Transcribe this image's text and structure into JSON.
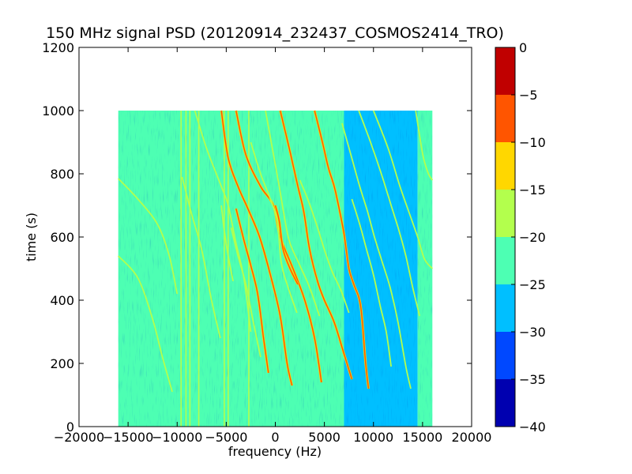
{
  "chart_data": {
    "type": "heatmap",
    "title": "150 MHz signal PSD (20120914_232437_COSMOS2414_TRO)",
    "xlabel": "frequency (Hz)",
    "ylabel": "time (s)",
    "xlim": [
      -20000,
      20000
    ],
    "ylim": [
      0,
      1200
    ],
    "x_ticks": [
      -20000,
      -15000,
      -10000,
      -5000,
      0,
      5000,
      10000,
      15000,
      20000
    ],
    "x_tick_labels": [
      "−20000",
      "−15000",
      "−10000",
      "−5000",
      "0",
      "5000",
      "10000",
      "15000",
      "20000"
    ],
    "y_ticks": [
      0,
      200,
      400,
      600,
      800,
      1000,
      1200
    ],
    "y_tick_labels": [
      "0",
      "200",
      "400",
      "600",
      "800",
      "1000",
      "1200"
    ],
    "data_extent": {
      "x": [
        -16000,
        16000
      ],
      "y": [
        0,
        1000
      ]
    },
    "colorbar": {
      "range": [
        -40,
        0
      ],
      "levels": [
        {
          "from": -40,
          "to": -35,
          "color": "#0000b0"
        },
        {
          "from": -35,
          "to": -30,
          "color": "#0048ff"
        },
        {
          "from": -30,
          "to": -25,
          "color": "#00bfff"
        },
        {
          "from": -25,
          "to": -20,
          "color": "#4dffb3"
        },
        {
          "from": -20,
          "to": -15,
          "color": "#b3ff4d"
        },
        {
          "from": -15,
          "to": -10,
          "color": "#ffd700"
        },
        {
          "from": -10,
          "to": -5,
          "color": "#ff5500"
        },
        {
          "from": -5,
          "to": 0,
          "color": "#c00000"
        }
      ],
      "ticks": [
        0,
        -5,
        -10,
        -15,
        -20,
        -25,
        -30,
        -35,
        -40
      ],
      "tick_labels": [
        "0",
        "−5",
        "−10",
        "−15",
        "−20",
        "−25",
        "−30",
        "−35",
        "−40"
      ]
    },
    "background_regions": [
      {
        "x_from": -16000,
        "x_to": 7000,
        "level": -22.5
      },
      {
        "x_from": 7000,
        "x_to": 14500,
        "level": -27.5
      },
      {
        "x_from": 14500,
        "x_to": 16000,
        "level": -22.5
      }
    ],
    "vertical_lines": [
      {
        "x": -9600,
        "y_from": 0,
        "y_to": 1000,
        "level": -17.5
      },
      {
        "x": -9100,
        "y_from": 0,
        "y_to": 1000,
        "level": -17.5
      },
      {
        "x": -8700,
        "y_from": 0,
        "y_to": 1000,
        "level": -17.5
      },
      {
        "x": -7800,
        "y_from": 0,
        "y_to": 1000,
        "level": -17.5
      },
      {
        "x": -5200,
        "y_from": 0,
        "y_to": 1000,
        "level": -17.5
      },
      {
        "x": -4800,
        "y_from": 0,
        "y_to": 1000,
        "level": -17.5
      },
      {
        "x": -2700,
        "y_from": 0,
        "y_to": 1000,
        "level": -17.5
      },
      {
        "x": -1200,
        "y_from": 0,
        "y_to": 1000,
        "level": -20
      }
    ],
    "tracks": [
      {
        "points": [
          [
            -16000,
            540
          ],
          [
            -14000,
            470
          ],
          [
            -12500,
            340
          ],
          [
            -11500,
            220
          ],
          [
            -10500,
            110
          ]
        ],
        "level": -17.5
      },
      {
        "points": [
          [
            -16000,
            785
          ],
          [
            -14000,
            720
          ],
          [
            -12000,
            640
          ],
          [
            -10800,
            540
          ],
          [
            -10000,
            420
          ]
        ],
        "level": -17.5
      },
      {
        "points": [
          [
            -9500,
            790
          ],
          [
            -8500,
            670
          ],
          [
            -7500,
            560
          ],
          [
            -6500,
            400
          ],
          [
            -5600,
            280
          ]
        ],
        "level": -17.5
      },
      {
        "points": [
          [
            -8200,
            1000
          ],
          [
            -7000,
            880
          ],
          [
            -5500,
            760
          ],
          [
            -4800,
            700
          ],
          [
            -4000,
            580
          ],
          [
            -3200,
            470
          ],
          [
            -2500,
            300
          ]
        ],
        "level": -17.5
      },
      {
        "points": [
          [
            -5500,
            1000
          ],
          [
            -4800,
            850
          ],
          [
            -3800,
            760
          ],
          [
            -2800,
            690
          ],
          [
            -1600,
            600
          ],
          [
            -500,
            480
          ],
          [
            500,
            350
          ],
          [
            1200,
            200
          ],
          [
            1700,
            130
          ]
        ],
        "level": -7.5
      },
      {
        "points": [
          [
            -5500,
            700
          ],
          [
            -5200,
            620
          ],
          [
            -4800,
            540
          ],
          [
            -4300,
            460
          ]
        ],
        "level": -17.5
      },
      {
        "points": [
          [
            -4000,
            1000
          ],
          [
            -3000,
            860
          ],
          [
            -1500,
            760
          ],
          [
            -200,
            700
          ],
          [
            500,
            600
          ],
          [
            1800,
            500
          ],
          [
            3000,
            400
          ],
          [
            4000,
            280
          ],
          [
            4700,
            140
          ]
        ],
        "level": -7.5
      },
      {
        "points": [
          [
            -2500,
            900
          ],
          [
            -1500,
            800
          ],
          [
            -500,
            720
          ],
          [
            200,
            650
          ],
          [
            600,
            520
          ],
          [
            1200,
            450
          ],
          [
            2200,
            360
          ]
        ],
        "level": -17.5
      },
      {
        "points": [
          [
            -4000,
            690
          ],
          [
            -3200,
            590
          ],
          [
            -2500,
            510
          ],
          [
            -1800,
            420
          ],
          [
            -1200,
            280
          ],
          [
            -700,
            170
          ]
        ],
        "level": -7.5
      },
      {
        "points": [
          [
            -4500,
            630
          ],
          [
            -3800,
            540
          ],
          [
            -3000,
            450
          ],
          [
            -2300,
            340
          ],
          [
            -1500,
            220
          ]
        ],
        "level": -17.5
      },
      {
        "points": [
          [
            -1000,
            1000
          ],
          [
            -300,
            880
          ],
          [
            400,
            760
          ],
          [
            1000,
            650
          ],
          [
            1500,
            580
          ],
          [
            2500,
            510
          ],
          [
            3500,
            440
          ],
          [
            4500,
            350
          ]
        ],
        "level": -17.5
      },
      {
        "points": [
          [
            500,
            1000
          ],
          [
            1500,
            870
          ],
          [
            2300,
            760
          ],
          [
            2900,
            680
          ],
          [
            3500,
            560
          ],
          [
            4300,
            460
          ],
          [
            5000,
            400
          ],
          [
            6000,
            330
          ],
          [
            7000,
            230
          ],
          [
            7800,
            150
          ]
        ],
        "level": -7.5
      },
      {
        "points": [
          [
            0,
            700
          ],
          [
            400,
            650
          ],
          [
            800,
            560
          ],
          [
            1500,
            500
          ],
          [
            2300,
            450
          ]
        ],
        "level": -7.5
      },
      {
        "points": [
          [
            4000,
            1000
          ],
          [
            4800,
            900
          ],
          [
            5400,
            820
          ],
          [
            6000,
            760
          ],
          [
            6500,
            690
          ],
          [
            7000,
            610
          ],
          [
            7500,
            500
          ],
          [
            8000,
            450
          ],
          [
            8700,
            380
          ],
          [
            9200,
            200
          ],
          [
            9500,
            120
          ]
        ],
        "level": -7.5
      },
      {
        "points": [
          [
            2500,
            780
          ],
          [
            3300,
            720
          ],
          [
            4200,
            640
          ],
          [
            5000,
            560
          ],
          [
            5800,
            490
          ],
          [
            6700,
            430
          ],
          [
            7500,
            360
          ]
        ],
        "level": -17.5
      },
      {
        "points": [
          [
            6800,
            960
          ],
          [
            7700,
            860
          ],
          [
            8600,
            760
          ],
          [
            9400,
            680
          ],
          [
            10100,
            600
          ],
          [
            10900,
            520
          ],
          [
            11700,
            440
          ],
          [
            12500,
            330
          ],
          [
            13300,
            190
          ],
          [
            13800,
            120
          ]
        ],
        "level": -17.5
      },
      {
        "points": [
          [
            8500,
            1000
          ],
          [
            9700,
            900
          ],
          [
            10800,
            800
          ],
          [
            11800,
            700
          ],
          [
            12600,
            620
          ],
          [
            13300,
            540
          ],
          [
            14000,
            440
          ],
          [
            14700,
            350
          ]
        ],
        "level": -17.5
      },
      {
        "points": [
          [
            10000,
            1000
          ],
          [
            11500,
            880
          ],
          [
            12700,
            760
          ],
          [
            13600,
            680
          ],
          [
            14500,
            600
          ],
          [
            15200,
            530
          ],
          [
            16000,
            500
          ]
        ],
        "level": -17.5
      },
      {
        "points": [
          [
            7800,
            720
          ],
          [
            8600,
            640
          ],
          [
            9300,
            560
          ],
          [
            10000,
            480
          ],
          [
            10700,
            380
          ],
          [
            11300,
            300
          ],
          [
            11800,
            190
          ]
        ],
        "level": -17.5
      },
      {
        "points": [
          [
            14300,
            1000
          ],
          [
            14700,
            920
          ],
          [
            15100,
            850
          ],
          [
            15600,
            800
          ],
          [
            16000,
            780
          ]
        ],
        "level": -17.5
      }
    ]
  }
}
